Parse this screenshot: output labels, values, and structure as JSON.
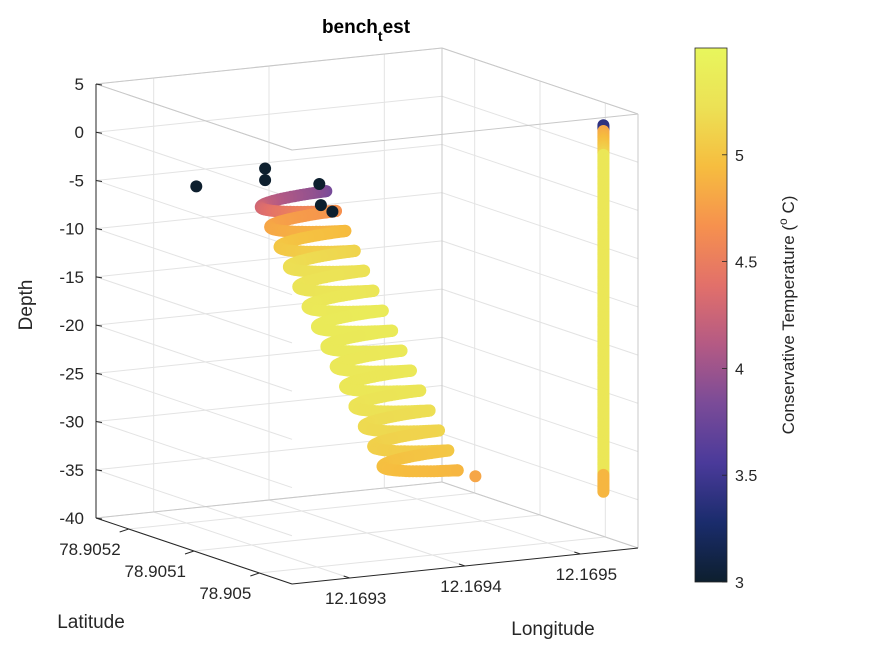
{
  "chart_data": {
    "type": "scatter3",
    "title": {
      "main": "bench",
      "subscript": "t",
      "rest": "est"
    },
    "xlabel": "Longitude",
    "ylabel": "Latitude",
    "zlabel": "Depth",
    "x_ticks": [
      "12.1693",
      "12.1694",
      "12.1695"
    ],
    "x_tick_values": [
      12.1693,
      12.1694,
      12.1695
    ],
    "xlim": [
      12.16925,
      12.16955
    ],
    "y_ticks": [
      "78.905",
      "78.9051",
      "78.9052"
    ],
    "y_tick_values": [
      78.905,
      78.9051,
      78.9052
    ],
    "ylim": [
      78.90495,
      78.90525
    ],
    "z_ticks": [
      "5",
      "0",
      "-5",
      "-10",
      "-15",
      "-20",
      "-25",
      "-30",
      "-35",
      "-40"
    ],
    "z_tick_values": [
      5,
      0,
      -5,
      -10,
      -15,
      -20,
      -25,
      -30,
      -35,
      -40
    ],
    "zlim": [
      -40,
      5
    ],
    "grid": true,
    "colorbar": {
      "label": "Conservative Temperature (",
      "label_sup": "o",
      "label_end": " C)",
      "ticks": [
        "5",
        "4.5",
        "4",
        "3.5",
        "3"
      ],
      "tick_values": [
        5,
        4.5,
        4,
        3.5,
        3
      ],
      "clim": [
        3,
        5.5
      ],
      "colormap": [
        "#0d1f2e",
        "#1a2c6c",
        "#4a3a9a",
        "#7a4b98",
        "#b45a84",
        "#e2706a",
        "#f6914e",
        "#f6bd3f",
        "#ece155",
        "#e8f65d"
      ]
    },
    "series": {
      "vertical_cast": {
        "longitude": 12.16952,
        "latitude": 78.90495,
        "depth_top": 4.2,
        "depth_bottom": -33.8,
        "temperature_top": 3.4,
        "temperature_body": 5.3,
        "temperature_bottom": 4.9
      },
      "helix": {
        "center_start": [
          12.16938,
          78.90518
        ],
        "center_end": [
          12.16942,
          78.90505
        ],
        "depth_start": -6.5,
        "depth_end": -33,
        "turns": 14,
        "radius_lon": 3e-05,
        "radius_lat": 1e-05,
        "temperature_profile": [
          [
            -6.5,
            3.8
          ],
          [
            -8,
            4.6
          ],
          [
            -10,
            4.9
          ],
          [
            -13,
            5.2
          ],
          [
            -18,
            5.35
          ],
          [
            -25,
            5.3
          ],
          [
            -30,
            5.1
          ],
          [
            -33,
            4.9
          ]
        ]
      },
      "outliers": [
        {
          "longitude": 12.16932,
          "latitude": 78.90522,
          "depth": -5.8,
          "temperature": 3.0
        },
        {
          "longitude": 12.16936,
          "latitude": 78.9051,
          "depth": -5.5,
          "temperature": 3.0
        },
        {
          "longitude": 12.16937,
          "latitude": 78.9051,
          "depth": -6.3,
          "temperature": 3.0
        },
        {
          "longitude": 12.16934,
          "latitude": 78.90515,
          "depth": -2.6,
          "temperature": 3.0
        },
        {
          "longitude": 12.16934,
          "latitude": 78.90515,
          "depth": -3.8,
          "temperature": 3.0
        },
        {
          "longitude": 12.16937,
          "latitude": 78.90512,
          "depth": -3.9,
          "temperature": 3.0
        },
        {
          "longitude": 12.16946,
          "latitude": 78.90504,
          "depth": -33.5,
          "temperature": 4.8
        }
      ]
    }
  }
}
